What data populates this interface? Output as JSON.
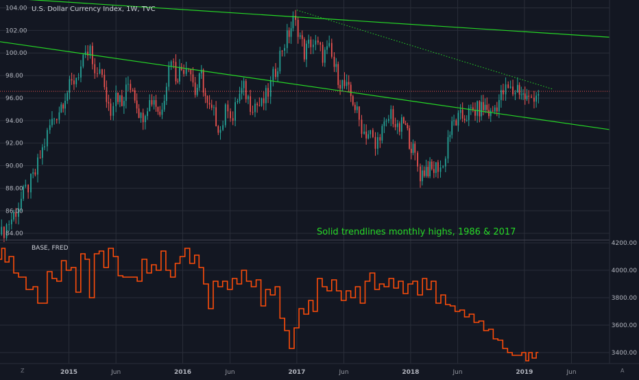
{
  "colors": {
    "background": "#131722",
    "grid": "#2a2e39",
    "up": "#26a69a",
    "down": "#ef5350",
    "trendline": "#26d926",
    "base_line": "#ff4d0a",
    "last_price": "#ef5350"
  },
  "chart_data": [
    {
      "type": "candlestick",
      "title": "U.S. Dollar Currency Index, 1W, TVC",
      "annotation": "Solid trendlines monthly highs, 1986 & 2017",
      "x_start": "2014-05-25",
      "x_end": "2019-10-01",
      "ylim": [
        83.4,
        104.7
      ],
      "y_ticks": [
        "84.00",
        "86.00",
        "88.00",
        "90.00",
        "92.00",
        "94.00",
        "96.00",
        "98.00",
        "100.00",
        "102.00",
        "104.00"
      ],
      "x_ticks": [
        {
          "date": "2015-01-01",
          "label": "2015",
          "major": true
        },
        {
          "date": "2015-06-01",
          "label": "Jun",
          "major": false
        },
        {
          "date": "2016-01-01",
          "label": "2016",
          "major": true
        },
        {
          "date": "2016-06-01",
          "label": "Jun",
          "major": false
        },
        {
          "date": "2017-01-01",
          "label": "2017",
          "major": true
        },
        {
          "date": "2017-06-01",
          "label": "Jun",
          "major": false
        },
        {
          "date": "2018-01-01",
          "label": "2018",
          "major": true
        },
        {
          "date": "2018-06-01",
          "label": "Jun",
          "major": false
        },
        {
          "date": "2019-01-01",
          "label": "2019",
          "major": true
        },
        {
          "date": "2019-06-01",
          "label": "Jun",
          "major": false
        }
      ],
      "closes": [
        {
          "date": "2014-05-30",
          "close": 83.9
        },
        {
          "date": "2014-06-15",
          "close": 84.7
        },
        {
          "date": "2014-07-01",
          "close": 85.3
        },
        {
          "date": "2014-07-15",
          "close": 86.0
        },
        {
          "date": "2014-08-01",
          "close": 87.0
        },
        {
          "date": "2014-08-15",
          "close": 87.8
        },
        {
          "date": "2014-09-01",
          "close": 88.5
        },
        {
          "date": "2014-09-15",
          "close": 89.3
        },
        {
          "date": "2014-10-01",
          "close": 90.8
        },
        {
          "date": "2014-10-15",
          "close": 92.0
        },
        {
          "date": "2014-11-01",
          "close": 93.5
        },
        {
          "date": "2014-11-15",
          "close": 94.3
        },
        {
          "date": "2014-12-01",
          "close": 95.0
        },
        {
          "date": "2014-12-20",
          "close": 96.3
        },
        {
          "date": "2015-01-10",
          "close": 97.2
        },
        {
          "date": "2015-02-01",
          "close": 98.3
        },
        {
          "date": "2015-03-10",
          "close": 100.2
        },
        {
          "date": "2015-03-25",
          "close": 97.5
        },
        {
          "date": "2015-04-10",
          "close": 99.0
        },
        {
          "date": "2015-04-25",
          "close": 96.5
        },
        {
          "date": "2015-05-15",
          "close": 95.0
        },
        {
          "date": "2015-06-01",
          "close": 96.8
        },
        {
          "date": "2015-06-20",
          "close": 95.2
        },
        {
          "date": "2015-07-10",
          "close": 97.3
        },
        {
          "date": "2015-07-25",
          "close": 97.0
        },
        {
          "date": "2015-08-20",
          "close": 94.2
        },
        {
          "date": "2015-09-10",
          "close": 95.5
        },
        {
          "date": "2015-10-01",
          "close": 96.0
        },
        {
          "date": "2015-10-20",
          "close": 94.5
        },
        {
          "date": "2015-11-10",
          "close": 97.5
        },
        {
          "date": "2015-11-25",
          "close": 99.8
        },
        {
          "date": "2015-12-10",
          "close": 98.0
        },
        {
          "date": "2015-12-28",
          "close": 98.6
        },
        {
          "date": "2016-01-20",
          "close": 99.2
        },
        {
          "date": "2016-02-10",
          "close": 96.5
        },
        {
          "date": "2016-03-01",
          "close": 98.0
        },
        {
          "date": "2016-03-20",
          "close": 95.2
        },
        {
          "date": "2016-04-10",
          "close": 94.5
        },
        {
          "date": "2016-05-01",
          "close": 93.2
        },
        {
          "date": "2016-05-25",
          "close": 95.5
        },
        {
          "date": "2016-06-10",
          "close": 94.0
        },
        {
          "date": "2016-06-25",
          "close": 96.0
        },
        {
          "date": "2016-07-15",
          "close": 96.8
        },
        {
          "date": "2016-08-05",
          "close": 95.5
        },
        {
          "date": "2016-08-20",
          "close": 95.5
        },
        {
          "date": "2016-09-10",
          "close": 95.3
        },
        {
          "date": "2016-10-01",
          "close": 96.5
        },
        {
          "date": "2016-10-25",
          "close": 98.5
        },
        {
          "date": "2016-11-15",
          "close": 100.5
        },
        {
          "date": "2016-12-01",
          "close": 101.3
        },
        {
          "date": "2016-12-20",
          "close": 102.8
        },
        {
          "date": "2017-01-05",
          "close": 102.2
        },
        {
          "date": "2017-01-25",
          "close": 100.0
        },
        {
          "date": "2017-02-15",
          "close": 101.0
        },
        {
          "date": "2017-03-10",
          "close": 100.5
        },
        {
          "date": "2017-03-25",
          "close": 99.8
        },
        {
          "date": "2017-04-15",
          "close": 100.2
        },
        {
          "date": "2017-05-01",
          "close": 98.8
        },
        {
          "date": "2017-05-20",
          "close": 97.5
        },
        {
          "date": "2017-06-10",
          "close": 96.8
        },
        {
          "date": "2017-06-30",
          "close": 95.8
        },
        {
          "date": "2017-07-20",
          "close": 94.0
        },
        {
          "date": "2017-08-05",
          "close": 93.0
        },
        {
          "date": "2017-08-25",
          "close": 92.8
        },
        {
          "date": "2017-09-10",
          "close": 91.5
        },
        {
          "date": "2017-09-25",
          "close": 93.0
        },
        {
          "date": "2017-10-15",
          "close": 93.5
        },
        {
          "date": "2017-10-30",
          "close": 94.8
        },
        {
          "date": "2017-11-20",
          "close": 93.0
        },
        {
          "date": "2017-12-10",
          "close": 93.8
        },
        {
          "date": "2017-12-28",
          "close": 92.3
        },
        {
          "date": "2018-01-15",
          "close": 90.8
        },
        {
          "date": "2018-02-01",
          "close": 89.2
        },
        {
          "date": "2018-02-20",
          "close": 89.8
        },
        {
          "date": "2018-03-10",
          "close": 89.5
        },
        {
          "date": "2018-03-30",
          "close": 90.0
        },
        {
          "date": "2018-04-15",
          "close": 89.8
        },
        {
          "date": "2018-05-01",
          "close": 92.5
        },
        {
          "date": "2018-05-20",
          "close": 93.8
        },
        {
          "date": "2018-06-10",
          "close": 94.2
        },
        {
          "date": "2018-06-30",
          "close": 94.5
        },
        {
          "date": "2018-07-20",
          "close": 94.8
        },
        {
          "date": "2018-08-10",
          "close": 95.0
        },
        {
          "date": "2018-08-28",
          "close": 95.2
        },
        {
          "date": "2018-09-15",
          "close": 94.5
        },
        {
          "date": "2018-10-05",
          "close": 95.5
        },
        {
          "date": "2018-10-25",
          "close": 96.5
        },
        {
          "date": "2018-11-10",
          "close": 96.8
        },
        {
          "date": "2018-11-25",
          "close": 96.5
        },
        {
          "date": "2018-12-10",
          "close": 97.0
        },
        {
          "date": "2018-12-28",
          "close": 96.2
        },
        {
          "date": "2019-01-15",
          "close": 95.8
        },
        {
          "date": "2019-02-01",
          "close": 96.3
        },
        {
          "date": "2019-02-15",
          "close": 96.6
        }
      ],
      "last_price": 96.6,
      "trendlines": [
        {
          "style": "solid",
          "from": {
            "date": "2014-05-25",
            "value": 104.9
          },
          "to": {
            "date": "2019-10-01",
            "value": 101.4
          }
        },
        {
          "style": "solid",
          "from": {
            "date": "2014-05-25",
            "value": 101.0
          },
          "to": {
            "date": "2019-10-01",
            "value": 93.2
          }
        },
        {
          "style": "dotted",
          "from": {
            "date": "2017-01-01",
            "value": 103.8
          },
          "to": {
            "date": "2019-04-01",
            "value": 96.8
          }
        }
      ]
    },
    {
      "type": "line",
      "title": "BASE, FRED",
      "x_start": "2014-05-25",
      "x_end": "2019-10-01",
      "ylim": [
        3320,
        4220
      ],
      "y_ticks": [
        "3400.00",
        "3600.00",
        "3800.00",
        "4000.00",
        "4200.00"
      ],
      "points": [
        {
          "date": "2014-05-25",
          "value": 4080
        },
        {
          "date": "2014-06-05",
          "value": 4160
        },
        {
          "date": "2014-06-15",
          "value": 4060
        },
        {
          "date": "2014-07-01",
          "value": 4100
        },
        {
          "date": "2014-07-15",
          "value": 3980
        },
        {
          "date": "2014-08-01",
          "value": 3950
        },
        {
          "date": "2014-09-01",
          "value": 3860
        },
        {
          "date": "2014-09-15",
          "value": 3880
        },
        {
          "date": "2014-10-01",
          "value": 3760
        },
        {
          "date": "2014-10-15",
          "value": 3760
        },
        {
          "date": "2014-11-01",
          "value": 3990
        },
        {
          "date": "2014-11-15",
          "value": 3940
        },
        {
          "date": "2014-12-01",
          "value": 3920
        },
        {
          "date": "2014-12-15",
          "value": 4070
        },
        {
          "date": "2015-01-01",
          "value": 4000
        },
        {
          "date": "2015-01-15",
          "value": 4020
        },
        {
          "date": "2015-02-01",
          "value": 3840
        },
        {
          "date": "2015-02-15",
          "value": 4120
        },
        {
          "date": "2015-03-01",
          "value": 4080
        },
        {
          "date": "2015-03-15",
          "value": 3800
        },
        {
          "date": "2015-04-01",
          "value": 4120
        },
        {
          "date": "2015-04-15",
          "value": 4140
        },
        {
          "date": "2015-05-01",
          "value": 4020
        },
        {
          "date": "2015-05-15",
          "value": 4160
        },
        {
          "date": "2015-06-01",
          "value": 4100
        },
        {
          "date": "2015-06-15",
          "value": 3960
        },
        {
          "date": "2015-07-01",
          "value": 3950
        },
        {
          "date": "2015-08-01",
          "value": 3950
        },
        {
          "date": "2015-08-15",
          "value": 3920
        },
        {
          "date": "2015-09-01",
          "value": 4080
        },
        {
          "date": "2015-09-15",
          "value": 3980
        },
        {
          "date": "2015-10-01",
          "value": 4040
        },
        {
          "date": "2015-10-15",
          "value": 4000
        },
        {
          "date": "2015-11-01",
          "value": 4140
        },
        {
          "date": "2015-11-15",
          "value": 4000
        },
        {
          "date": "2015-12-01",
          "value": 3950
        },
        {
          "date": "2015-12-15",
          "value": 4050
        },
        {
          "date": "2016-01-01",
          "value": 4100
        },
        {
          "date": "2016-01-15",
          "value": 4160
        },
        {
          "date": "2016-02-01",
          "value": 4050
        },
        {
          "date": "2016-02-15",
          "value": 4110
        },
        {
          "date": "2016-03-01",
          "value": 4020
        },
        {
          "date": "2016-03-15",
          "value": 3900
        },
        {
          "date": "2016-04-01",
          "value": 3720
        },
        {
          "date": "2016-04-15",
          "value": 3920
        },
        {
          "date": "2016-05-01",
          "value": 3880
        },
        {
          "date": "2016-05-15",
          "value": 3920
        },
        {
          "date": "2016-06-01",
          "value": 3860
        },
        {
          "date": "2016-06-15",
          "value": 3940
        },
        {
          "date": "2016-07-01",
          "value": 3900
        },
        {
          "date": "2016-07-15",
          "value": 4000
        },
        {
          "date": "2016-08-01",
          "value": 3920
        },
        {
          "date": "2016-08-15",
          "value": 3880
        },
        {
          "date": "2016-09-01",
          "value": 3930
        },
        {
          "date": "2016-09-15",
          "value": 3740
        },
        {
          "date": "2016-10-01",
          "value": 3860
        },
        {
          "date": "2016-10-15",
          "value": 3820
        },
        {
          "date": "2016-11-01",
          "value": 3880
        },
        {
          "date": "2016-11-15",
          "value": 3650
        },
        {
          "date": "2016-12-01",
          "value": 3560
        },
        {
          "date": "2016-12-15",
          "value": 3430
        },
        {
          "date": "2017-01-01",
          "value": 3580
        },
        {
          "date": "2017-01-15",
          "value": 3720
        },
        {
          "date": "2017-02-01",
          "value": 3680
        },
        {
          "date": "2017-02-15",
          "value": 3780
        },
        {
          "date": "2017-03-01",
          "value": 3700
        },
        {
          "date": "2017-03-15",
          "value": 3940
        },
        {
          "date": "2017-04-01",
          "value": 3880
        },
        {
          "date": "2017-04-15",
          "value": 3850
        },
        {
          "date": "2017-05-01",
          "value": 3930
        },
        {
          "date": "2017-05-15",
          "value": 3850
        },
        {
          "date": "2017-06-01",
          "value": 3780
        },
        {
          "date": "2017-06-15",
          "value": 3850
        },
        {
          "date": "2017-07-01",
          "value": 3800
        },
        {
          "date": "2017-07-15",
          "value": 3880
        },
        {
          "date": "2017-08-01",
          "value": 3760
        },
        {
          "date": "2017-08-15",
          "value": 3920
        },
        {
          "date": "2017-09-01",
          "value": 3980
        },
        {
          "date": "2017-09-15",
          "value": 3860
        },
        {
          "date": "2017-10-01",
          "value": 3900
        },
        {
          "date": "2017-10-15",
          "value": 3880
        },
        {
          "date": "2017-11-01",
          "value": 3940
        },
        {
          "date": "2017-11-15",
          "value": 3870
        },
        {
          "date": "2017-12-01",
          "value": 3920
        },
        {
          "date": "2017-12-15",
          "value": 3830
        },
        {
          "date": "2018-01-01",
          "value": 3900
        },
        {
          "date": "2018-01-15",
          "value": 3920
        },
        {
          "date": "2018-02-01",
          "value": 3820
        },
        {
          "date": "2018-02-15",
          "value": 3940
        },
        {
          "date": "2018-03-01",
          "value": 3860
        },
        {
          "date": "2018-03-15",
          "value": 3920
        },
        {
          "date": "2018-04-01",
          "value": 3760
        },
        {
          "date": "2018-04-15",
          "value": 3820
        },
        {
          "date": "2018-05-01",
          "value": 3750
        },
        {
          "date": "2018-05-15",
          "value": 3740
        },
        {
          "date": "2018-06-01",
          "value": 3700
        },
        {
          "date": "2018-06-15",
          "value": 3710
        },
        {
          "date": "2018-07-01",
          "value": 3660
        },
        {
          "date": "2018-07-15",
          "value": 3680
        },
        {
          "date": "2018-08-01",
          "value": 3620
        },
        {
          "date": "2018-08-15",
          "value": 3630
        },
        {
          "date": "2018-09-01",
          "value": 3560
        },
        {
          "date": "2018-09-15",
          "value": 3570
        },
        {
          "date": "2018-10-01",
          "value": 3500
        },
        {
          "date": "2018-10-15",
          "value": 3490
        },
        {
          "date": "2018-11-01",
          "value": 3430
        },
        {
          "date": "2018-11-15",
          "value": 3400
        },
        {
          "date": "2018-12-01",
          "value": 3380
        },
        {
          "date": "2018-12-15",
          "value": 3380
        },
        {
          "date": "2019-01-01",
          "value": 3400
        },
        {
          "date": "2019-01-10",
          "value": 3340
        },
        {
          "date": "2019-01-20",
          "value": 3400
        },
        {
          "date": "2019-02-01",
          "value": 3360
        },
        {
          "date": "2019-02-15",
          "value": 3400
        }
      ]
    }
  ],
  "corner_left": "Z",
  "corner_right": "A"
}
